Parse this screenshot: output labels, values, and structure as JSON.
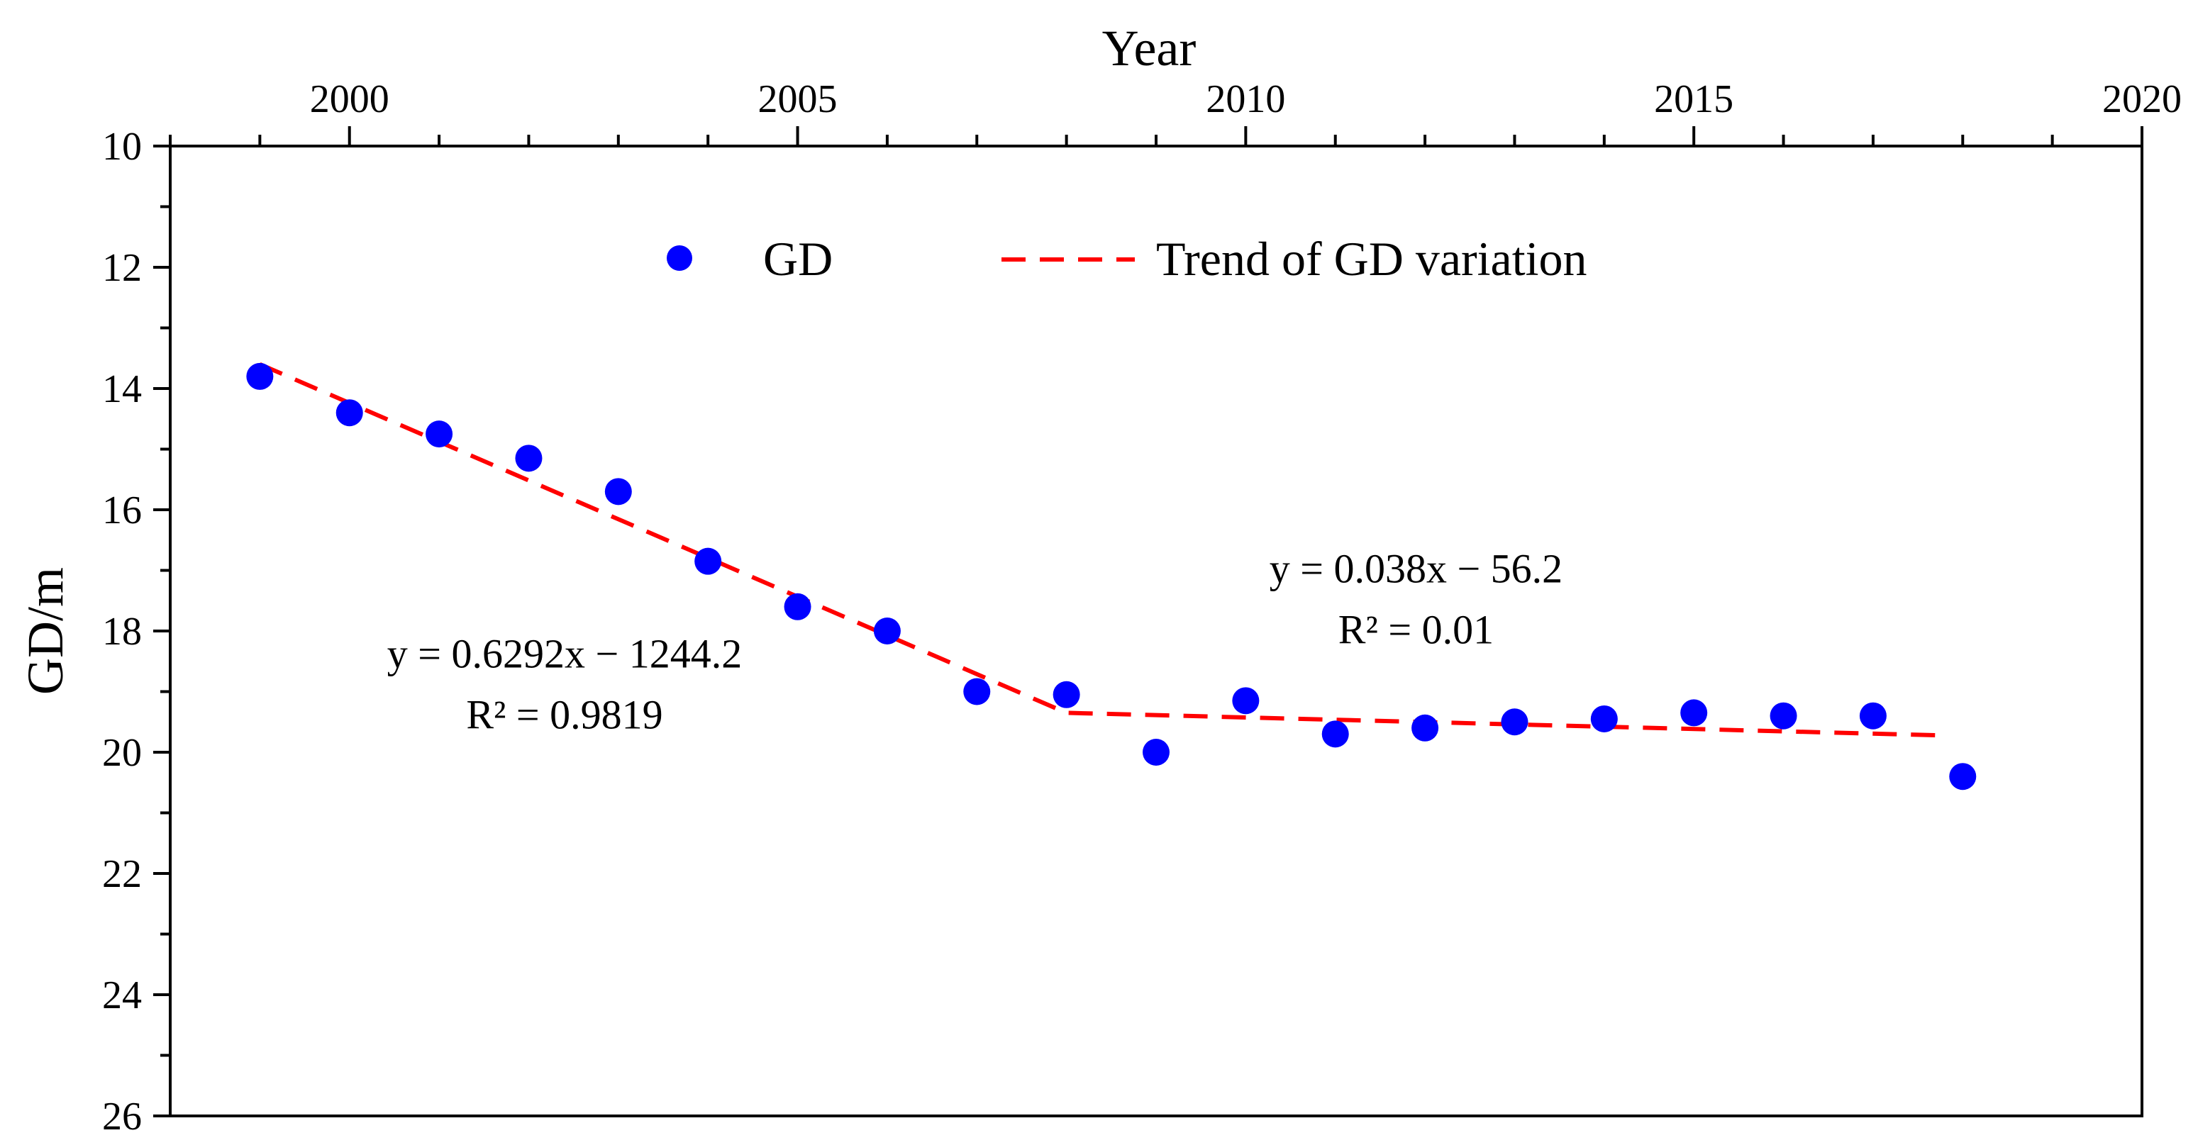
{
  "chart_data": {
    "type": "scatter",
    "title": "",
    "xlabel": "Year",
    "ylabel": "GD/m",
    "xlim": [
      1998,
      2020
    ],
    "ylim": [
      10,
      26
    ],
    "y_inverted": true,
    "x_axis_position": "top",
    "grid": false,
    "x_ticks": [
      2000,
      2005,
      2010,
      2015,
      2020
    ],
    "y_ticks": [
      10,
      12,
      14,
      16,
      18,
      20,
      22,
      24,
      26
    ],
    "legend_position": "top-center",
    "series": [
      {
        "name": "GD",
        "kind": "points",
        "color": "#0000ff",
        "x": [
          1999,
          2000,
          2001,
          2002,
          2003,
          2004,
          2005,
          2006,
          2007,
          2008,
          2009,
          2010,
          2011,
          2012,
          2013,
          2014,
          2015,
          2016,
          2017,
          2018
        ],
        "y": [
          13.8,
          14.4,
          14.75,
          15.15,
          15.7,
          16.85,
          17.6,
          18.0,
          19.0,
          19.05,
          20.0,
          19.15,
          19.7,
          19.6,
          19.5,
          19.45,
          19.35,
          19.4,
          19.4,
          20.4
        ]
      },
      {
        "name": "Trend of GD variation",
        "kind": "dashed-line",
        "color": "#ff0000",
        "x": [
          1999,
          2008,
          2017.7
        ],
        "y": [
          13.6,
          19.35,
          19.72
        ]
      }
    ],
    "annotations": [
      {
        "line1": "y = 0.6292x − 1244.2",
        "line2": "R² = 0.9819",
        "x": 2002.4,
        "y": 18.6
      },
      {
        "line1": "y = 0.038x − 56.2",
        "line2": "R² = 0.01",
        "x": 2011.9,
        "y": 17.2
      }
    ]
  }
}
